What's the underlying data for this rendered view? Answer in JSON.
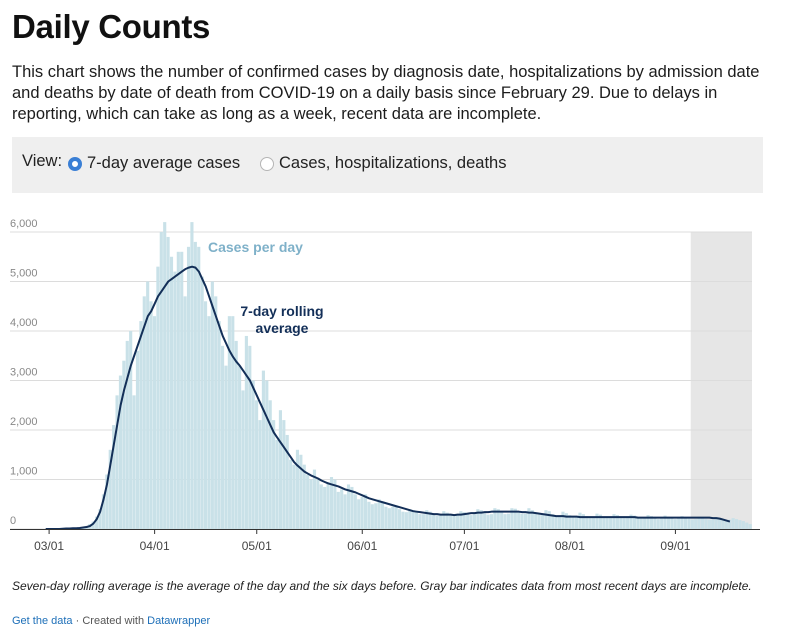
{
  "header": {
    "title": "Daily Counts",
    "description": "This chart shows the number of confirmed cases by diagnosis date, hospitalizations by admission date and deaths by date of death from COVID-19 on a daily basis since February 29. Due to delays in reporting, which can take as long as a week, recent data are incomplete."
  },
  "view": {
    "label": "View:",
    "options": [
      {
        "label": "7-day average cases",
        "selected": true
      },
      {
        "label": "Cases, hospitalizations, deaths",
        "selected": false
      }
    ]
  },
  "colors": {
    "bars": "#c9e1e8",
    "line": "#132f58",
    "incomplete_band": "#e6e6e6",
    "bars_label": "#7fb1c9",
    "line_label": "#132f58",
    "accent": "#3a7fd5"
  },
  "chart_data": {
    "type": "bar",
    "start_date": "02/29",
    "xlabel": "",
    "ylabel": "",
    "ylim": [
      0,
      6000
    ],
    "y_ticks": [
      0,
      1000,
      2000,
      3000,
      4000,
      5000,
      6000
    ],
    "y_tick_labels": [
      "0",
      "1,000",
      "2,000",
      "3,000",
      "4,000",
      "5,000",
      "6,000"
    ],
    "x_tick_labels": [
      "03/01",
      "04/01",
      "05/01",
      "06/01",
      "07/01",
      "08/01",
      "09/01"
    ],
    "x_tick_days": [
      1,
      32,
      62,
      93,
      123,
      154,
      185
    ],
    "incomplete_from_day": 190,
    "grid": true,
    "series": [
      {
        "name": "Cases per day",
        "type": "bar",
        "values": [
          0,
          0,
          0,
          5,
          5,
          10,
          10,
          15,
          10,
          20,
          30,
          40,
          60,
          100,
          150,
          250,
          400,
          700,
          1100,
          1600,
          2100,
          2700,
          3100,
          3400,
          3800,
          4000,
          2700,
          3600,
          4200,
          4700,
          5000,
          4600,
          4300,
          5300,
          6000,
          6200,
          5900,
          5500,
          5200,
          5600,
          5600,
          4700,
          5700,
          6200,
          5800,
          5700,
          5100,
          4600,
          4300,
          5000,
          4700,
          4200,
          3700,
          3300,
          4300,
          4300,
          3800,
          3300,
          2800,
          3900,
          3700,
          3000,
          2600,
          2200,
          3200,
          3000,
          2600,
          2200,
          1800,
          2400,
          2200,
          1900,
          1400,
          1300,
          1600,
          1500,
          1300,
          1100,
          1000,
          1200,
          1000,
          900,
          850,
          950,
          1050,
          1000,
          750,
          800,
          700,
          900,
          850,
          700,
          600,
          650,
          700,
          550,
          500,
          520,
          600,
          550,
          450,
          420,
          450,
          450,
          400,
          350,
          340,
          400,
          380,
          350,
          300,
          300,
          380,
          350,
          300,
          270,
          280,
          360,
          330,
          290,
          260,
          280,
          360,
          340,
          300,
          280,
          300,
          400,
          380,
          320,
          290,
          300,
          420,
          400,
          340,
          300,
          310,
          420,
          410,
          350,
          310,
          310,
          420,
          380,
          330,
          290,
          290,
          380,
          360,
          300,
          270,
          270,
          350,
          320,
          280,
          250,
          260,
          330,
          300,
          260,
          240,
          250,
          310,
          290,
          250,
          230,
          240,
          300,
          280,
          240,
          220,
          230,
          290,
          270,
          230,
          210,
          220,
          280,
          260,
          220,
          200,
          210,
          270,
          250,
          220,
          200,
          210,
          260,
          240,
          210,
          190,
          200,
          250,
          230,
          200,
          190,
          190,
          240,
          220,
          200,
          180,
          190,
          220,
          200,
          180,
          160,
          130,
          100
        ]
      },
      {
        "name": "7-day rolling average",
        "type": "line",
        "values": [
          0,
          0,
          0,
          0,
          0,
          5,
          10,
          10,
          15,
          15,
          20,
          30,
          40,
          60,
          110,
          200,
          350,
          600,
          900,
          1300,
          1700,
          2100,
          2500,
          2800,
          3050,
          3300,
          3500,
          3700,
          3900,
          4100,
          4300,
          4400,
          4550,
          4700,
          4800,
          4900,
          5000,
          5050,
          5100,
          5150,
          5200,
          5250,
          5280,
          5300,
          5280,
          5200,
          5050,
          4900,
          4700,
          4500,
          4300,
          4100,
          3900,
          3750,
          3600,
          3480,
          3380,
          3300,
          3200,
          3100,
          3000,
          2850,
          2700,
          2550,
          2400,
          2250,
          2100,
          1950,
          1850,
          1750,
          1650,
          1550,
          1450,
          1350,
          1280,
          1220,
          1160,
          1120,
          1080,
          1050,
          1020,
          980,
          950,
          920,
          900,
          880,
          860,
          830,
          800,
          780,
          760,
          740,
          710,
          680,
          650,
          620,
          600,
          580,
          560,
          540,
          520,
          500,
          480,
          460,
          440,
          420,
          400,
          380,
          360,
          350,
          340,
          330,
          320,
          310,
          300,
          300,
          290,
          290,
          290,
          290,
          280,
          290,
          290,
          300,
          310,
          320,
          320,
          330,
          330,
          340,
          340,
          350,
          350,
          350,
          350,
          350,
          350,
          350,
          350,
          350,
          340,
          340,
          330,
          330,
          320,
          310,
          300,
          290,
          280,
          270,
          260,
          260,
          260,
          250,
          250,
          250,
          250,
          240,
          240,
          240,
          240,
          240,
          240,
          240,
          240,
          240,
          240,
          240,
          240,
          240,
          240,
          240,
          240,
          240,
          230,
          230,
          230,
          230,
          230,
          230,
          230,
          230,
          230,
          230,
          230,
          230,
          230,
          230,
          230,
          230,
          230,
          230,
          230,
          230,
          230,
          230,
          220,
          220,
          210,
          190,
          170,
          150
        ]
      }
    ],
    "annotations": [
      {
        "text": "Cases per day",
        "target": "bars"
      },
      {
        "text": "7-day rolling average",
        "lines": [
          "7-day rolling",
          "average"
        ],
        "target": "line"
      }
    ]
  },
  "footer": {
    "note": "Seven-day rolling average is the average of the day and the six days before. Gray bar indicates data from most recent days are incomplete.",
    "get_data": "Get the data",
    "separator": "·",
    "created_with": "Created with",
    "tool": "Datawrapper"
  }
}
